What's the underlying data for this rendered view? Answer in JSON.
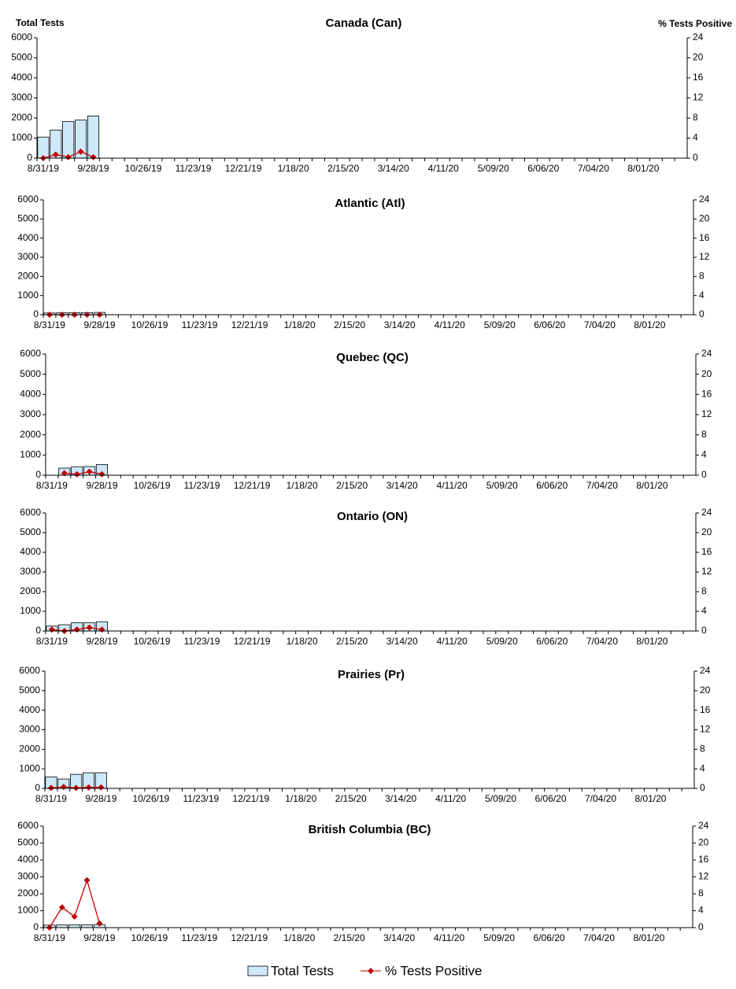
{
  "chart_data": [
    {
      "type": "bar",
      "title": "Canada (Can)",
      "ylabel": "Total Tests",
      "y2label": "% Tests Positive",
      "categories": [
        "8/31/19",
        null,
        null,
        null,
        "9/28/19",
        null,
        null,
        null,
        "10/26/19",
        null,
        null,
        null,
        "11/23/19",
        null,
        null,
        null,
        "12/21/19",
        null,
        null,
        null,
        "1/18/20",
        null,
        null,
        null,
        "2/15/20",
        null,
        null,
        null,
        "3/14/20",
        null,
        null,
        null,
        "4/11/20",
        null,
        null,
        null,
        "5/09/20",
        null,
        null,
        null,
        "6/06/20",
        null,
        null,
        null,
        "7/04/20",
        null,
        null,
        null,
        "8/01/20",
        null,
        null,
        null
      ],
      "series": [
        {
          "name": "Total Tests",
          "color": "#cde9f9",
          "values": [
            1050,
            1400,
            1830,
            1900,
            2100,
            null,
            null,
            null,
            null,
            null,
            null,
            null,
            null,
            null,
            null,
            null,
            null,
            null,
            null,
            null,
            null,
            null,
            null,
            null,
            null,
            null,
            null,
            null,
            null,
            null,
            null,
            null,
            null,
            null,
            null,
            null,
            null,
            null,
            null,
            null,
            null,
            null,
            null,
            null,
            null,
            null,
            null,
            null,
            null,
            null,
            null,
            null
          ]
        },
        {
          "name": "% Tests Positive",
          "color": "#c00000",
          "axis": "y2",
          "values": [
            0,
            0.7,
            0.2,
            1.3,
            0.2,
            null,
            null,
            null,
            null,
            null,
            null,
            null,
            null,
            null,
            null,
            null,
            null,
            null,
            null,
            null,
            null,
            null,
            null,
            null,
            null,
            null,
            null,
            null,
            null,
            null,
            null,
            null,
            null,
            null,
            null,
            null,
            null,
            null,
            null,
            null,
            null,
            null,
            null,
            null,
            null,
            null,
            null,
            null,
            null,
            null,
            null,
            null
          ]
        }
      ],
      "ylim": [
        0,
        6000
      ],
      "yticks": [
        0,
        1000,
        2000,
        3000,
        4000,
        5000,
        6000
      ],
      "y2lim": [
        0,
        24
      ],
      "y2ticks": [
        0,
        4,
        8,
        12,
        16,
        20,
        24
      ]
    },
    {
      "type": "bar",
      "title": "Atlantic (Atl)",
      "categories": [
        "8/31/19",
        null,
        null,
        null,
        "9/28/19",
        null,
        null,
        null,
        "10/26/19",
        null,
        null,
        null,
        "11/23/19",
        null,
        null,
        null,
        "12/21/19",
        null,
        null,
        null,
        "1/18/20",
        null,
        null,
        null,
        "2/15/20",
        null,
        null,
        null,
        "3/14/20",
        null,
        null,
        null,
        "4/11/20",
        null,
        null,
        null,
        "5/09/20",
        null,
        null,
        null,
        "6/06/20",
        null,
        null,
        null,
        "7/04/20",
        null,
        null,
        null,
        "8/01/20",
        null,
        null,
        null
      ],
      "series": [
        {
          "color": "#cde9f9",
          "values": [
            90,
            100,
            110,
            110,
            120,
            null,
            null,
            null,
            null,
            null,
            null,
            null,
            null,
            null,
            null,
            null,
            null,
            null,
            null,
            null,
            null,
            null,
            null,
            null,
            null,
            null,
            null,
            null,
            null,
            null,
            null,
            null,
            null,
            null,
            null,
            null,
            null,
            null,
            null,
            null,
            null,
            null,
            null,
            null,
            null,
            null,
            null,
            null,
            null,
            null,
            null,
            null
          ]
        },
        {
          "color": "#c00000",
          "axis": "y2",
          "values": [
            0,
            0,
            0,
            0,
            0,
            null,
            null,
            null,
            null,
            null,
            null,
            null,
            null,
            null,
            null,
            null,
            null,
            null,
            null,
            null,
            null,
            null,
            null,
            null,
            null,
            null,
            null,
            null,
            null,
            null,
            null,
            null,
            null,
            null,
            null,
            null,
            null,
            null,
            null,
            null,
            null,
            null,
            null,
            null,
            null,
            null,
            null,
            null,
            null,
            null,
            null,
            null
          ]
        }
      ],
      "ylim": [
        0,
        6000
      ],
      "yticks": [
        0,
        1000,
        2000,
        3000,
        4000,
        5000,
        6000
      ],
      "y2lim": [
        0,
        24
      ],
      "y2ticks": [
        0,
        4,
        8,
        12,
        16,
        20,
        24
      ]
    },
    {
      "type": "bar",
      "title": "Quebec (QC)",
      "categories": [
        "8/31/19",
        null,
        null,
        null,
        "9/28/19",
        null,
        null,
        null,
        "10/26/19",
        null,
        null,
        null,
        "11/23/19",
        null,
        null,
        null,
        "12/21/19",
        null,
        null,
        null,
        "1/18/20",
        null,
        null,
        null,
        "2/15/20",
        null,
        null,
        null,
        "3/14/20",
        null,
        null,
        null,
        "4/11/20",
        null,
        null,
        null,
        "5/09/20",
        null,
        null,
        null,
        "6/06/20",
        null,
        null,
        null,
        "7/04/20",
        null,
        null,
        null,
        "8/01/20",
        null,
        null,
        null
      ],
      "series": [
        {
          "color": "#cde9f9",
          "values": [
            null,
            350,
            420,
            430,
            530,
            null,
            null,
            null,
            null,
            null,
            null,
            null,
            null,
            null,
            null,
            null,
            null,
            null,
            null,
            null,
            null,
            null,
            null,
            null,
            null,
            null,
            null,
            null,
            null,
            null,
            null,
            null,
            null,
            null,
            null,
            null,
            null,
            null,
            null,
            null,
            null,
            null,
            null,
            null,
            null,
            null,
            null,
            null,
            null,
            null,
            null,
            null
          ]
        },
        {
          "color": "#c00000",
          "axis": "y2",
          "values": [
            null,
            0.4,
            0.2,
            0.7,
            0.2,
            null,
            null,
            null,
            null,
            null,
            null,
            null,
            null,
            null,
            null,
            null,
            null,
            null,
            null,
            null,
            null,
            null,
            null,
            null,
            null,
            null,
            null,
            null,
            null,
            null,
            null,
            null,
            null,
            null,
            null,
            null,
            null,
            null,
            null,
            null,
            null,
            null,
            null,
            null,
            null,
            null,
            null,
            null,
            null,
            null,
            null,
            null
          ]
        }
      ],
      "ylim": [
        0,
        6000
      ],
      "yticks": [
        0,
        1000,
        2000,
        3000,
        4000,
        5000,
        6000
      ],
      "y2lim": [
        0,
        24
      ],
      "y2ticks": [
        0,
        4,
        8,
        12,
        16,
        20,
        24
      ]
    },
    {
      "type": "bar",
      "title": "Ontario (ON)",
      "categories": [
        "8/31/19",
        null,
        null,
        null,
        "9/28/19",
        null,
        null,
        null,
        "10/26/19",
        null,
        null,
        null,
        "11/23/19",
        null,
        null,
        null,
        "12/21/19",
        null,
        null,
        null,
        "1/18/20",
        null,
        null,
        null,
        "2/15/20",
        null,
        null,
        null,
        "3/14/20",
        null,
        null,
        null,
        "4/11/20",
        null,
        null,
        null,
        "5/09/20",
        null,
        null,
        null,
        "6/06/20",
        null,
        null,
        null,
        "7/04/20",
        null,
        null,
        null,
        "8/01/20",
        null,
        null,
        null
      ],
      "series": [
        {
          "color": "#cde9f9",
          "values": [
            250,
            320,
            420,
            420,
            470,
            null,
            null,
            null,
            null,
            null,
            null,
            null,
            null,
            null,
            null,
            null,
            null,
            null,
            null,
            null,
            null,
            null,
            null,
            null,
            null,
            null,
            null,
            null,
            null,
            null,
            null,
            null,
            null,
            null,
            null,
            null,
            null,
            null,
            null,
            null,
            null,
            null,
            null,
            null,
            null,
            null,
            null,
            null,
            null,
            null,
            null,
            null
          ]
        },
        {
          "color": "#c00000",
          "axis": "y2",
          "values": [
            0.3,
            0,
            0.3,
            0.7,
            0.3,
            null,
            null,
            null,
            null,
            null,
            null,
            null,
            null,
            null,
            null,
            null,
            null,
            null,
            null,
            null,
            null,
            null,
            null,
            null,
            null,
            null,
            null,
            null,
            null,
            null,
            null,
            null,
            null,
            null,
            null,
            null,
            null,
            null,
            null,
            null,
            null,
            null,
            null,
            null,
            null,
            null,
            null,
            null,
            null,
            null,
            null,
            null
          ]
        }
      ],
      "ylim": [
        0,
        6000
      ],
      "yticks": [
        0,
        1000,
        2000,
        3000,
        4000,
        5000,
        6000
      ],
      "y2lim": [
        0,
        24
      ],
      "y2ticks": [
        0,
        4,
        8,
        12,
        16,
        20,
        24
      ]
    },
    {
      "type": "bar",
      "title": "Prairies (Pr)",
      "categories": [
        "8/31/19",
        null,
        null,
        null,
        "9/28/19",
        null,
        null,
        null,
        "10/26/19",
        null,
        null,
        null,
        "11/23/19",
        null,
        null,
        null,
        "12/21/19",
        null,
        null,
        null,
        "1/18/20",
        null,
        null,
        null,
        "2/15/20",
        null,
        null,
        null,
        "3/14/20",
        null,
        null,
        null,
        "4/11/20",
        null,
        null,
        null,
        "5/09/20",
        null,
        null,
        null,
        "6/06/20",
        null,
        null,
        null,
        "7/04/20",
        null,
        null,
        null,
        "8/01/20",
        null,
        null,
        null
      ],
      "series": [
        {
          "color": "#cde9f9",
          "values": [
            580,
            480,
            720,
            800,
            800,
            null,
            null,
            null,
            null,
            null,
            null,
            null,
            null,
            null,
            null,
            null,
            null,
            null,
            null,
            null,
            null,
            null,
            null,
            null,
            null,
            null,
            null,
            null,
            null,
            null,
            null,
            null,
            null,
            null,
            null,
            null,
            null,
            null,
            null,
            null,
            null,
            null,
            null,
            null,
            null,
            null,
            null,
            null,
            null,
            null,
            null,
            null
          ]
        },
        {
          "color": "#c00000",
          "axis": "y2",
          "values": [
            0.1,
            0.3,
            0.1,
            0.2,
            0.2,
            null,
            null,
            null,
            null,
            null,
            null,
            null,
            null,
            null,
            null,
            null,
            null,
            null,
            null,
            null,
            null,
            null,
            null,
            null,
            null,
            null,
            null,
            null,
            null,
            null,
            null,
            null,
            null,
            null,
            null,
            null,
            null,
            null,
            null,
            null,
            null,
            null,
            null,
            null,
            null,
            null,
            null,
            null,
            null,
            null,
            null,
            null
          ]
        }
      ],
      "ylim": [
        0,
        6000
      ],
      "yticks": [
        0,
        1000,
        2000,
        3000,
        4000,
        5000,
        6000
      ],
      "y2lim": [
        0,
        24
      ],
      "y2ticks": [
        0,
        4,
        8,
        12,
        16,
        20,
        24
      ]
    },
    {
      "type": "bar",
      "title": "British Columbia (BC)",
      "categories": [
        "8/31/19",
        null,
        null,
        null,
        "9/28/19",
        null,
        null,
        null,
        "10/26/19",
        null,
        null,
        null,
        "11/23/19",
        null,
        null,
        null,
        "12/21/19",
        null,
        null,
        null,
        "1/18/20",
        null,
        null,
        null,
        "2/15/20",
        null,
        null,
        null,
        "3/14/20",
        null,
        null,
        null,
        "4/11/20",
        null,
        null,
        null,
        "5/09/20",
        null,
        null,
        null,
        "6/06/20",
        null,
        null,
        null,
        "7/04/20",
        null,
        null,
        null,
        "8/01/20",
        null,
        null,
        null
      ],
      "series": [
        {
          "color": "#cde9f9",
          "values": [
            150,
            160,
            170,
            170,
            180,
            null,
            null,
            null,
            null,
            null,
            null,
            null,
            null,
            null,
            null,
            null,
            null,
            null,
            null,
            null,
            null,
            null,
            null,
            null,
            null,
            null,
            null,
            null,
            null,
            null,
            null,
            null,
            null,
            null,
            null,
            null,
            null,
            null,
            null,
            null,
            null,
            null,
            null,
            null,
            null,
            null,
            null,
            null,
            null,
            null,
            null,
            null
          ]
        },
        {
          "color": "#c00000",
          "axis": "y2",
          "values": [
            0,
            4.8,
            2.6,
            11.2,
            1.0,
            null,
            null,
            null,
            null,
            null,
            null,
            null,
            null,
            null,
            null,
            null,
            null,
            null,
            null,
            null,
            null,
            null,
            null,
            null,
            null,
            null,
            null,
            null,
            null,
            null,
            null,
            null,
            null,
            null,
            null,
            null,
            null,
            null,
            null,
            null,
            null,
            null,
            null,
            null,
            null,
            null,
            null,
            null,
            null,
            null,
            null,
            null
          ]
        }
      ],
      "ylim": [
        0,
        6000
      ],
      "yticks": [
        0,
        1000,
        2000,
        3000,
        4000,
        5000,
        6000
      ],
      "y2lim": [
        0,
        24
      ],
      "y2ticks": [
        0,
        4,
        8,
        12,
        16,
        20,
        24
      ]
    }
  ]
}
